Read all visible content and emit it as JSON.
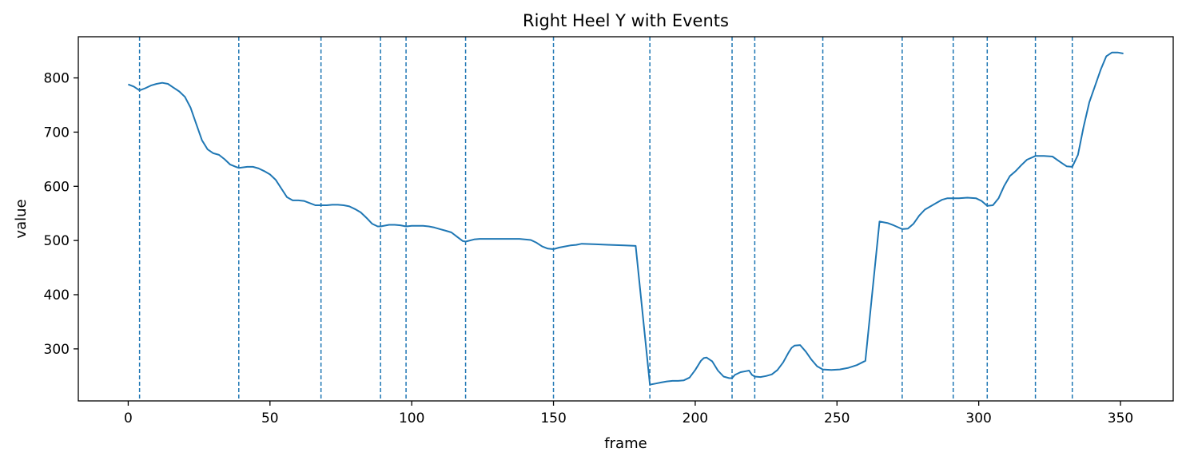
{
  "chart_data": {
    "type": "line",
    "title": "Right Heel Y with Events",
    "xlabel": "frame",
    "ylabel": "value",
    "xlim": [
      -17.6,
      368.6
    ],
    "ylim": [
      204,
      876
    ],
    "xticks": [
      0,
      50,
      100,
      150,
      200,
      250,
      300,
      350
    ],
    "yticks": [
      300,
      400,
      500,
      600,
      700,
      800
    ],
    "grid": false,
    "legend": "none",
    "line_color": "#1f77b4",
    "event_color": "#1f77b4",
    "series": [
      {
        "x": [
          0,
          2,
          4,
          6,
          8,
          10,
          12,
          14,
          16,
          18,
          20,
          22,
          24,
          26,
          28,
          30,
          32,
          34,
          36,
          38,
          39,
          42,
          44,
          46,
          48,
          50,
          52,
          54,
          56,
          58,
          60,
          62,
          64,
          66,
          68,
          70,
          72,
          74,
          76,
          78,
          80,
          82,
          84,
          86,
          88,
          89,
          92,
          94,
          96,
          98,
          100,
          102,
          104,
          106,
          108,
          110,
          112,
          114,
          116,
          118,
          119,
          122,
          124,
          126,
          130,
          134,
          138,
          142,
          144,
          146,
          148,
          150,
          152,
          154,
          156,
          158,
          160,
          165,
          170,
          175,
          179,
          184,
          186,
          188,
          190,
          192,
          194,
          196,
          198,
          200,
          202,
          203,
          204,
          206,
          208,
          210,
          212,
          213,
          214,
          216,
          218,
          219,
          220,
          221,
          223,
          225,
          227,
          229,
          231,
          233,
          234,
          235,
          237,
          239,
          241,
          243,
          245,
          248,
          251,
          254,
          257,
          260,
          265,
          268,
          270,
          273,
          275,
          277,
          279,
          281,
          283,
          285,
          287,
          289,
          291,
          293,
          296,
          299,
          301,
          303,
          305,
          307,
          309,
          311,
          313,
          315,
          317,
          320,
          323,
          326,
          329,
          331,
          333,
          335,
          337,
          339,
          341,
          343,
          345,
          347,
          349,
          351
        ],
        "y": [
          788,
          784,
          777,
          781,
          786,
          789,
          791,
          789,
          782,
          775,
          765,
          745,
          715,
          685,
          668,
          661,
          658,
          650,
          640,
          636,
          634,
          636,
          636,
          633,
          628,
          622,
          612,
          596,
          580,
          574,
          574,
          573,
          569,
          565,
          565,
          565,
          566,
          566,
          565,
          563,
          558,
          552,
          542,
          531,
          526,
          526,
          529,
          529,
          528,
          526,
          527,
          527,
          527,
          526,
          524,
          521,
          518,
          515,
          507,
          499,
          498,
          502,
          503,
          503,
          503,
          503,
          503,
          501,
          496,
          489,
          485,
          484,
          487,
          489,
          491,
          492,
          494,
          493,
          492,
          491,
          490,
          234,
          236,
          238,
          240,
          241,
          241,
          242,
          247,
          261,
          278,
          283,
          284,
          277,
          260,
          249,
          246,
          246,
          252,
          257,
          259,
          260,
          252,
          249,
          248,
          250,
          253,
          261,
          275,
          294,
          302,
          306,
          307,
          295,
          280,
          268,
          262,
          261,
          262,
          265,
          270,
          278,
          535,
          532,
          528,
          521,
          522,
          531,
          546,
          557,
          563,
          569,
          575,
          578,
          578,
          578,
          579,
          578,
          573,
          564,
          565,
          578,
          601,
          619,
          628,
          639,
          649,
          656,
          656,
          655,
          644,
          637,
          636,
          658,
          710,
          755,
          785,
          815,
          840,
          847,
          847,
          845
        ],
        "color": "#1f77b4"
      }
    ],
    "events": [
      4,
      39,
      68,
      89,
      98,
      119,
      150,
      184,
      213,
      221,
      245,
      273,
      291,
      303,
      320,
      333
    ]
  }
}
